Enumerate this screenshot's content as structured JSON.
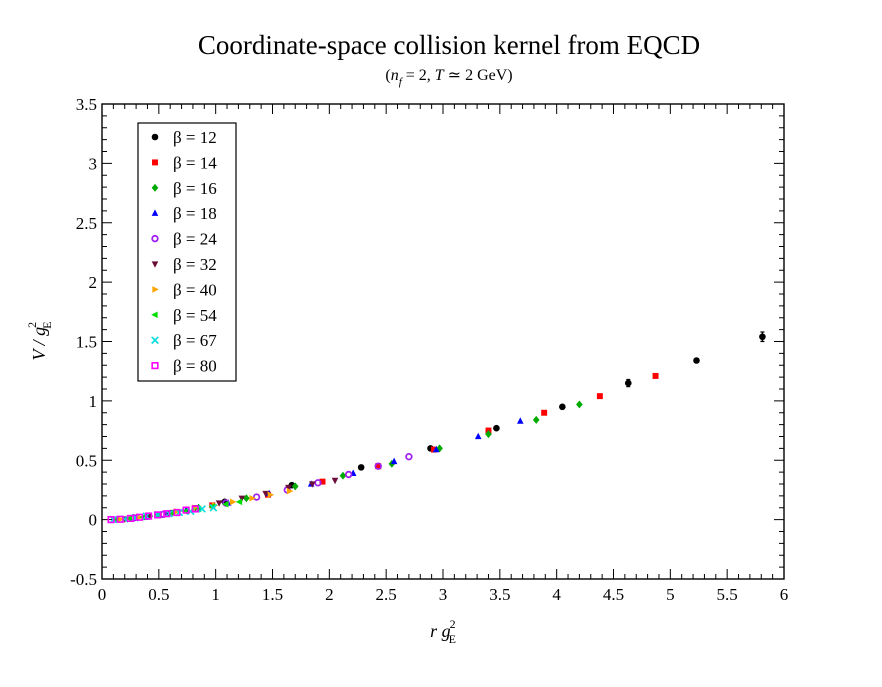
{
  "chart_data": {
    "type": "scatter",
    "title": "Coordinate-space collision kernel from EQCD",
    "subtitle": {
      "open": "(",
      "n": "n",
      "n_sub": "f",
      "mid": " = 2, ",
      "t": "T",
      "rest": " ≃ 2 GeV)"
    },
    "xlabel": {
      "var": "r g",
      "sup": "2",
      "sub": "E"
    },
    "ylabel": {
      "var": "V / g",
      "sup": "2",
      "sub": "E"
    },
    "xlim": [
      0,
      6
    ],
    "ylim": [
      -0.5,
      3.5
    ],
    "xticks": [
      0,
      0.5,
      1,
      1.5,
      2,
      2.5,
      3,
      3.5,
      4,
      4.5,
      5,
      5.5,
      6
    ],
    "xtick_labels": [
      "0",
      "0.5",
      "1",
      "1.5",
      "2",
      "2.5",
      "3",
      "3.5",
      "4",
      "4.5",
      "5",
      "5.5",
      "6"
    ],
    "yticks": [
      -0.5,
      0,
      0.5,
      1,
      1.5,
      2,
      2.5,
      3,
      3.5
    ],
    "ytick_labels": [
      "-0.5",
      "0",
      "0.5",
      "1",
      "1.5",
      "2",
      "2.5",
      "3",
      "3.5"
    ],
    "legend_position": "top-left",
    "series": [
      {
        "name": "β = 12",
        "color": "#000000",
        "marker": "circle",
        "x": [
          0.58,
          1.08,
          1.67,
          2.28,
          2.89,
          3.47,
          4.05,
          4.63,
          5.23,
          5.81
        ],
        "y": [
          0.05,
          0.15,
          0.29,
          0.44,
          0.6,
          0.77,
          0.95,
          1.15,
          1.34,
          1.54
        ],
        "err": [
          0,
          0,
          0,
          0,
          0,
          0,
          0,
          0.03,
          0,
          0.04
        ]
      },
      {
        "name": "β = 14",
        "color": "#ff0000",
        "marker": "square",
        "x": [
          0.5,
          0.97,
          1.46,
          1.94,
          2.43,
          2.92,
          3.4,
          3.89,
          4.38,
          4.87
        ],
        "y": [
          0.04,
          0.12,
          0.21,
          0.32,
          0.45,
          0.59,
          0.75,
          0.9,
          1.04,
          1.21
        ],
        "err": [
          0,
          0,
          0,
          0,
          0,
          0,
          0,
          0,
          0,
          0
        ]
      },
      {
        "name": "β = 16",
        "color": "#00aa00",
        "marker": "diamond",
        "x": [
          0.42,
          0.85,
          1.27,
          1.7,
          2.12,
          2.55,
          2.97,
          3.4,
          3.82,
          4.2
        ],
        "y": [
          0.03,
          0.1,
          0.18,
          0.28,
          0.37,
          0.47,
          0.6,
          0.72,
          0.84,
          0.97
        ],
        "err": [
          0,
          0,
          0,
          0,
          0,
          0,
          0,
          0,
          0,
          0
        ]
      },
      {
        "name": "β = 18",
        "color": "#0000ff",
        "marker": "triangle-up",
        "x": [
          0.38,
          0.74,
          1.11,
          1.47,
          1.84,
          2.21,
          2.57,
          2.94,
          3.31,
          3.68
        ],
        "y": [
          0.02,
          0.08,
          0.14,
          0.22,
          0.3,
          0.39,
          0.49,
          0.59,
          0.7,
          0.83
        ],
        "err": [
          0,
          0,
          0,
          0,
          0,
          0,
          0,
          0,
          0,
          0
        ]
      },
      {
        "name": "β = 24",
        "color": "#a020f0",
        "marker": "circle-open",
        "x": [
          0.28,
          0.54,
          0.82,
          1.09,
          1.36,
          1.63,
          1.9,
          2.17,
          2.43,
          2.7
        ],
        "y": [
          0.015,
          0.045,
          0.09,
          0.14,
          0.19,
          0.25,
          0.31,
          0.38,
          0.45,
          0.53
        ],
        "err": [
          0,
          0,
          0,
          0,
          0,
          0,
          0,
          0,
          0,
          0
        ]
      },
      {
        "name": "β = 32",
        "color": "#6b0f3a",
        "marker": "triangle-down",
        "x": [
          0.2,
          0.41,
          0.62,
          0.82,
          1.03,
          1.23,
          1.44,
          1.64,
          1.85,
          2.05
        ],
        "y": [
          0.005,
          0.03,
          0.06,
          0.1,
          0.14,
          0.18,
          0.22,
          0.27,
          0.3,
          0.33
        ],
        "err": [
          0,
          0,
          0,
          0,
          0,
          0,
          0,
          0,
          0,
          0
        ]
      },
      {
        "name": "β = 40",
        "color": "#ffa500",
        "marker": "triangle-right",
        "x": [
          0.16,
          0.33,
          0.49,
          0.66,
          0.82,
          0.99,
          1.15,
          1.32,
          1.48,
          1.65
        ],
        "y": [
          0.003,
          0.02,
          0.04,
          0.07,
          0.1,
          0.12,
          0.15,
          0.18,
          0.21,
          0.24
        ],
        "err": [
          0,
          0,
          0,
          0,
          0,
          0,
          0,
          0,
          0,
          0
        ]
      },
      {
        "name": "β = 54",
        "color": "#00dd00",
        "marker": "triangle-left",
        "x": [
          0.12,
          0.24,
          0.36,
          0.49,
          0.61,
          0.73,
          0.85,
          0.97,
          1.09,
          1.21
        ],
        "y": [
          0.002,
          0.01,
          0.02,
          0.04,
          0.06,
          0.07,
          0.09,
          0.11,
          0.13,
          0.15
        ],
        "err": [
          0,
          0,
          0,
          0,
          0,
          0,
          0,
          0,
          0,
          0
        ]
      },
      {
        "name": "β = 67",
        "color": "#00dddd",
        "marker": "x",
        "x": [
          0.1,
          0.2,
          0.29,
          0.39,
          0.49,
          0.59,
          0.68,
          0.78,
          0.88,
          0.98
        ],
        "y": [
          0.0,
          0.005,
          0.015,
          0.03,
          0.04,
          0.05,
          0.06,
          0.07,
          0.09,
          0.1
        ],
        "err": [
          0,
          0,
          0,
          0,
          0,
          0,
          0,
          0,
          0,
          0
        ]
      },
      {
        "name": "β = 80",
        "color": "#ff00ff",
        "marker": "square-open",
        "x": [
          0.08,
          0.16,
          0.25,
          0.33,
          0.41,
          0.49,
          0.57,
          0.66,
          0.74,
          0.82
        ],
        "y": [
          0.0,
          0.003,
          0.01,
          0.02,
          0.03,
          0.04,
          0.05,
          0.06,
          0.08,
          0.09
        ],
        "err": [
          0,
          0,
          0,
          0,
          0,
          0,
          0,
          0,
          0,
          0
        ]
      }
    ]
  }
}
